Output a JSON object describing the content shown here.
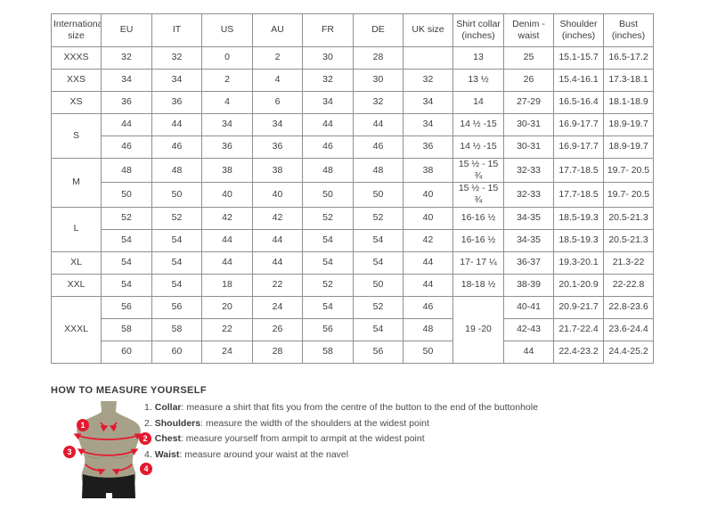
{
  "table": {
    "columns": [
      "International size",
      "EU",
      "IT",
      "US",
      "AU",
      "FR",
      "DE",
      "UK size",
      "Shirt collar (inches)",
      "Denim - waist",
      "Shoulder (inches)",
      "Bust (inches)"
    ],
    "rows": [
      {
        "gs": true,
        "cells": [
          {
            "t": "XXXS"
          },
          {
            "t": "32"
          },
          {
            "t": "32"
          },
          {
            "t": "0"
          },
          {
            "t": "2"
          },
          {
            "t": "30"
          },
          {
            "t": "28"
          },
          {
            "t": ""
          },
          {
            "t": "13"
          },
          {
            "t": "25"
          },
          {
            "t": "15.1-15.7"
          },
          {
            "t": "16.5-17.2"
          }
        ]
      },
      {
        "gs": true,
        "cells": [
          {
            "t": "XXS"
          },
          {
            "t": "34"
          },
          {
            "t": "34"
          },
          {
            "t": "2"
          },
          {
            "t": "4"
          },
          {
            "t": "32"
          },
          {
            "t": "30"
          },
          {
            "t": "32"
          },
          {
            "t": "13 ½"
          },
          {
            "t": "26"
          },
          {
            "t": "15.4-16.1"
          },
          {
            "t": "17.3-18.1"
          }
        ]
      },
      {
        "gs": true,
        "cells": [
          {
            "t": "XS"
          },
          {
            "t": "36"
          },
          {
            "t": "36"
          },
          {
            "t": "4"
          },
          {
            "t": "6"
          },
          {
            "t": "34"
          },
          {
            "t": "32"
          },
          {
            "t": "34"
          },
          {
            "t": "14"
          },
          {
            "t": "27-29"
          },
          {
            "t": "16.5-16.4"
          },
          {
            "t": "18.1-18.9"
          }
        ]
      },
      {
        "gs": true,
        "cells": [
          {
            "t": "S",
            "rs": 2
          },
          {
            "t": "44"
          },
          {
            "t": "44"
          },
          {
            "t": "34"
          },
          {
            "t": "34"
          },
          {
            "t": "44"
          },
          {
            "t": "44"
          },
          {
            "t": "34"
          },
          {
            "t": "14 ½ -15"
          },
          {
            "t": "30-31"
          },
          {
            "t": "16.9-17.7"
          },
          {
            "t": "18.9-19.7"
          }
        ]
      },
      {
        "cells": [
          {
            "t": "46"
          },
          {
            "t": "46"
          },
          {
            "t": "36"
          },
          {
            "t": "36"
          },
          {
            "t": "46"
          },
          {
            "t": "46"
          },
          {
            "t": "36"
          },
          {
            "t": "14 ½ -15"
          },
          {
            "t": "30-31"
          },
          {
            "t": "16.9-17.7"
          },
          {
            "t": "18.9-19.7"
          }
        ]
      },
      {
        "gs": true,
        "cells": [
          {
            "t": "M",
            "rs": 2
          },
          {
            "t": "48"
          },
          {
            "t": "48"
          },
          {
            "t": "38"
          },
          {
            "t": "38"
          },
          {
            "t": "48"
          },
          {
            "t": "48"
          },
          {
            "t": "38"
          },
          {
            "t": "15 ½ - 15 ¾"
          },
          {
            "t": "32-33"
          },
          {
            "t": "17.7-18.5"
          },
          {
            "t": "19.7- 20.5"
          }
        ]
      },
      {
        "cells": [
          {
            "t": "50"
          },
          {
            "t": "50"
          },
          {
            "t": "40"
          },
          {
            "t": "40"
          },
          {
            "t": "50"
          },
          {
            "t": "50"
          },
          {
            "t": "40"
          },
          {
            "t": "15 ½ - 15 ¾"
          },
          {
            "t": "32-33"
          },
          {
            "t": "17.7-18.5"
          },
          {
            "t": "19.7- 20.5"
          }
        ]
      },
      {
        "gs": true,
        "cells": [
          {
            "t": "L",
            "rs": 2
          },
          {
            "t": "52"
          },
          {
            "t": "52"
          },
          {
            "t": "42"
          },
          {
            "t": "42"
          },
          {
            "t": "52"
          },
          {
            "t": "52"
          },
          {
            "t": "40"
          },
          {
            "t": "16-16 ½"
          },
          {
            "t": "34-35"
          },
          {
            "t": "18.5-19.3"
          },
          {
            "t": "20.5-21.3"
          }
        ]
      },
      {
        "cells": [
          {
            "t": "54"
          },
          {
            "t": "54"
          },
          {
            "t": "44"
          },
          {
            "t": "44"
          },
          {
            "t": "54"
          },
          {
            "t": "54"
          },
          {
            "t": "42"
          },
          {
            "t": "16-16 ½"
          },
          {
            "t": "34-35"
          },
          {
            "t": "18.5-19.3"
          },
          {
            "t": "20.5-21.3"
          }
        ]
      },
      {
        "gs": true,
        "cells": [
          {
            "t": "XL"
          },
          {
            "t": "54"
          },
          {
            "t": "54"
          },
          {
            "t": "44"
          },
          {
            "t": "44"
          },
          {
            "t": "54"
          },
          {
            "t": "54"
          },
          {
            "t": "44"
          },
          {
            "t": "17- 17 ¼"
          },
          {
            "t": "36-37"
          },
          {
            "t": "19.3-20.1"
          },
          {
            "t": "21.3-22"
          }
        ]
      },
      {
        "gs": true,
        "cells": [
          {
            "t": "XXL"
          },
          {
            "t": "54"
          },
          {
            "t": "54"
          },
          {
            "t": "18"
          },
          {
            "t": "22"
          },
          {
            "t": "52"
          },
          {
            "t": "50"
          },
          {
            "t": "44"
          },
          {
            "t": "18-18 ½"
          },
          {
            "t": "38-39"
          },
          {
            "t": "20.1-20.9"
          },
          {
            "t": "22-22.8"
          }
        ]
      },
      {
        "gs": true,
        "cells": [
          {
            "t": "XXXL",
            "rs": 3
          },
          {
            "t": "56"
          },
          {
            "t": "56"
          },
          {
            "t": "20"
          },
          {
            "t": "24"
          },
          {
            "t": "54"
          },
          {
            "t": "52"
          },
          {
            "t": "46"
          },
          {
            "t": "19 -20",
            "rs": 3
          },
          {
            "t": "40-41"
          },
          {
            "t": "20.9-21.7"
          },
          {
            "t": "22.8-23.6"
          }
        ]
      },
      {
        "cells": [
          {
            "t": "58"
          },
          {
            "t": "58"
          },
          {
            "t": "22"
          },
          {
            "t": "26"
          },
          {
            "t": "56"
          },
          {
            "t": "54"
          },
          {
            "t": "48"
          },
          {
            "t": "42-43"
          },
          {
            "t": "21.7-22.4"
          },
          {
            "t": "23.6-24.4"
          }
        ]
      },
      {
        "cells": [
          {
            "t": "60"
          },
          {
            "t": "60"
          },
          {
            "t": "24"
          },
          {
            "t": "28"
          },
          {
            "t": "58"
          },
          {
            "t": "56"
          },
          {
            "t": "50"
          },
          {
            "t": "44"
          },
          {
            "t": "22.4-23.2"
          },
          {
            "t": "24.4-25.2"
          }
        ]
      }
    ]
  },
  "measure": {
    "title": "HOW TO MEASURE YOURSELF",
    "steps": [
      {
        "num": "1.",
        "label": "Collar",
        "text": ": measure a shirt that fits you from the centre of the button to the end of the buttonhole"
      },
      {
        "num": "2.",
        "label": "Shoulders",
        "text": ": measure the width of the shoulders at the widest point"
      },
      {
        "num": "3.",
        "label": "Chest",
        "text": ": measure yourself from armpit to armpit at the widest point"
      },
      {
        "num": "4.",
        "label": "Waist",
        "text": ": measure around your waist at the navel"
      }
    ]
  },
  "figure": {
    "markers": [
      "1",
      "2",
      "3",
      "4"
    ]
  },
  "colors": {
    "accent_red": "#e5192e",
    "mannequin": "#a7a189",
    "shorts": "#1c1c1c",
    "table_border": "#8f8f8f",
    "text": "#3d3d3d"
  }
}
